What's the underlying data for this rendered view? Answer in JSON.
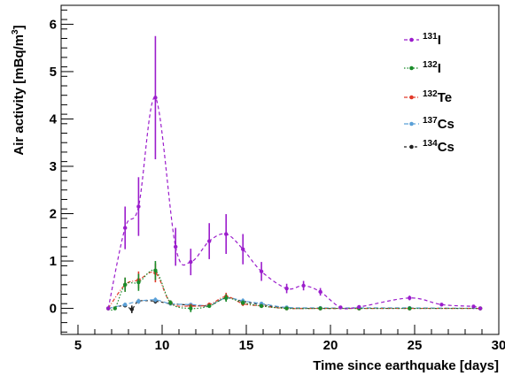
{
  "chart_data": {
    "type": "line",
    "xlabel": "Time since earthquake [days]",
    "ylabel_main": "Air activity [mBq/m",
    "ylabel_sup": "3",
    "ylabel_end": "]",
    "xlim": [
      4.0,
      30.0
    ],
    "ylim": [
      -0.55,
      6.4
    ],
    "xticks": [
      5,
      10,
      15,
      20,
      25,
      30
    ],
    "yticks": [
      0,
      1,
      2,
      3,
      4,
      5,
      6
    ],
    "grid": false,
    "legend_position": "top-right",
    "series": [
      {
        "name": "131I",
        "mass": "131",
        "element": "I",
        "color": "#9b1dcc",
        "dash": "4,3",
        "points": [
          {
            "x": 6.8,
            "y": 0.0,
            "err": 0.0
          },
          {
            "x": 7.8,
            "y": 1.7,
            "err": 0.45
          },
          {
            "x": 8.6,
            "y": 2.15,
            "err": 0.62
          },
          {
            "x": 9.6,
            "y": 4.45,
            "err": 1.3
          },
          {
            "x": 10.8,
            "y": 1.3,
            "err": 0.4
          },
          {
            "x": 11.7,
            "y": 0.98,
            "err": 0.28
          },
          {
            "x": 12.8,
            "y": 1.42,
            "err": 0.38
          },
          {
            "x": 13.8,
            "y": 1.57,
            "err": 0.42
          },
          {
            "x": 14.8,
            "y": 1.25,
            "err": 0.32
          },
          {
            "x": 15.9,
            "y": 0.78,
            "err": 0.2
          },
          {
            "x": 17.4,
            "y": 0.42,
            "err": 0.1
          },
          {
            "x": 18.4,
            "y": 0.48,
            "err": 0.1
          },
          {
            "x": 19.4,
            "y": 0.35,
            "err": 0.08
          },
          {
            "x": 20.6,
            "y": 0.02,
            "err": 0.02
          },
          {
            "x": 21.7,
            "y": 0.03,
            "err": 0.02
          },
          {
            "x": 24.7,
            "y": 0.22,
            "err": 0.05
          },
          {
            "x": 26.6,
            "y": 0.08,
            "err": 0.03
          },
          {
            "x": 28.5,
            "y": 0.04,
            "err": 0.02
          },
          {
            "x": 28.9,
            "y": 0.0,
            "err": 0.01
          }
        ]
      },
      {
        "name": "132I",
        "mass": "132",
        "element": "I",
        "color": "#1a8c2a",
        "dash": "1.5,2",
        "points": [
          {
            "x": 6.8,
            "y": 0.0,
            "err": 0.0
          },
          {
            "x": 7.2,
            "y": 0.0,
            "err": 0.0
          },
          {
            "x": 7.8,
            "y": 0.5,
            "err": 0.15
          },
          {
            "x": 8.6,
            "y": 0.55,
            "err": 0.18
          },
          {
            "x": 9.6,
            "y": 0.8,
            "err": 0.2
          },
          {
            "x": 10.5,
            "y": 0.12,
            "err": 0.05
          },
          {
            "x": 11.7,
            "y": 0.0,
            "err": 0.08
          },
          {
            "x": 12.8,
            "y": 0.05,
            "err": 0.04
          },
          {
            "x": 13.8,
            "y": 0.22,
            "err": 0.08
          },
          {
            "x": 14.8,
            "y": 0.12,
            "err": 0.05
          },
          {
            "x": 15.9,
            "y": 0.05,
            "err": 0.04
          },
          {
            "x": 17.4,
            "y": 0.0,
            "err": 0.02
          },
          {
            "x": 19.4,
            "y": 0.0,
            "err": 0.01
          },
          {
            "x": 21.7,
            "y": 0.0,
            "err": 0.01
          },
          {
            "x": 24.7,
            "y": 0.0,
            "err": 0.01
          },
          {
            "x": 28.9,
            "y": 0.0,
            "err": 0.01
          }
        ]
      },
      {
        "name": "132Te",
        "mass": "132",
        "element": "Te",
        "color": "#e23a2a",
        "dash": "4,2,1,2",
        "points": [
          {
            "x": 6.8,
            "y": 0.0,
            "err": 0.0
          },
          {
            "x": 7.8,
            "y": 0.5,
            "err": 0.15
          },
          {
            "x": 8.6,
            "y": 0.6,
            "err": 0.18
          },
          {
            "x": 9.6,
            "y": 0.75,
            "err": 0.2
          },
          {
            "x": 10.5,
            "y": 0.12,
            "err": 0.05
          },
          {
            "x": 11.7,
            "y": 0.05,
            "err": 0.04
          },
          {
            "x": 12.8,
            "y": 0.08,
            "err": 0.04
          },
          {
            "x": 13.8,
            "y": 0.25,
            "err": 0.08
          },
          {
            "x": 14.8,
            "y": 0.1,
            "err": 0.05
          },
          {
            "x": 15.9,
            "y": 0.05,
            "err": 0.04
          },
          {
            "x": 17.4,
            "y": 0.0,
            "err": 0.02
          },
          {
            "x": 19.4,
            "y": 0.0,
            "err": 0.01
          },
          {
            "x": 21.7,
            "y": 0.0,
            "err": 0.01
          },
          {
            "x": 24.7,
            "y": 0.0,
            "err": 0.01
          },
          {
            "x": 28.9,
            "y": 0.0,
            "err": 0.01
          }
        ]
      },
      {
        "name": "137Cs",
        "mass": "137",
        "element": "Cs",
        "color": "#5aa0d8",
        "dash": "5,3",
        "points": [
          {
            "x": 6.8,
            "y": 0.0,
            "err": 0.0
          },
          {
            "x": 7.8,
            "y": 0.08,
            "err": 0.04
          },
          {
            "x": 8.6,
            "y": 0.15,
            "err": 0.05
          },
          {
            "x": 9.6,
            "y": 0.18,
            "err": 0.05
          },
          {
            "x": 10.5,
            "y": 0.1,
            "err": 0.04
          },
          {
            "x": 11.7,
            "y": 0.08,
            "err": 0.03
          },
          {
            "x": 12.8,
            "y": 0.07,
            "err": 0.03
          },
          {
            "x": 13.8,
            "y": 0.22,
            "err": 0.06
          },
          {
            "x": 14.8,
            "y": 0.16,
            "err": 0.05
          },
          {
            "x": 15.9,
            "y": 0.1,
            "err": 0.04
          },
          {
            "x": 17.4,
            "y": 0.02,
            "err": 0.02
          },
          {
            "x": 19.4,
            "y": 0.01,
            "err": 0.01
          },
          {
            "x": 21.7,
            "y": 0.01,
            "err": 0.01
          },
          {
            "x": 24.7,
            "y": 0.01,
            "err": 0.01
          },
          {
            "x": 28.9,
            "y": 0.0,
            "err": 0.01
          }
        ]
      },
      {
        "name": "134Cs",
        "mass": "134",
        "element": "Cs",
        "color": "#222222",
        "dash": "3,3",
        "points": [
          {
            "x": 6.8,
            "y": 0.0,
            "err": 0.0
          },
          {
            "x": 7.8,
            "y": 0.06,
            "err": 0.03
          },
          {
            "x": 8.2,
            "y": -0.02,
            "err": 0.08
          },
          {
            "x": 8.6,
            "y": 0.15,
            "err": 0.05
          },
          {
            "x": 9.6,
            "y": 0.15,
            "err": 0.05
          },
          {
            "x": 10.5,
            "y": 0.1,
            "err": 0.04
          },
          {
            "x": 11.7,
            "y": 0.07,
            "err": 0.03
          },
          {
            "x": 12.8,
            "y": 0.06,
            "err": 0.03
          },
          {
            "x": 13.8,
            "y": 0.22,
            "err": 0.06
          },
          {
            "x": 14.8,
            "y": 0.15,
            "err": 0.05
          },
          {
            "x": 15.9,
            "y": 0.08,
            "err": 0.04
          },
          {
            "x": 17.4,
            "y": 0.01,
            "err": 0.02
          },
          {
            "x": 19.4,
            "y": 0.0,
            "err": 0.01
          },
          {
            "x": 21.7,
            "y": 0.0,
            "err": 0.01
          },
          {
            "x": 24.7,
            "y": 0.0,
            "err": 0.01
          },
          {
            "x": 28.9,
            "y": 0.0,
            "err": 0.01
          }
        ]
      }
    ]
  }
}
